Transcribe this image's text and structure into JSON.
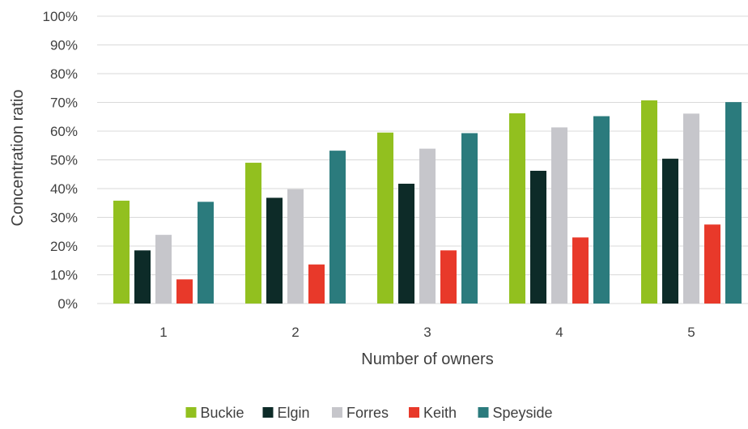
{
  "chart_data": {
    "type": "bar",
    "title": "",
    "xlabel": "Number of owners",
    "ylabel": "Concentration ratio",
    "categories": [
      "1",
      "2",
      "3",
      "4",
      "5"
    ],
    "ylim": [
      0,
      100
    ],
    "yticks": [
      "0%",
      "10%",
      "20%",
      "30%",
      "40%",
      "50%",
      "60%",
      "70%",
      "80%",
      "90%",
      "100%"
    ],
    "grid": true,
    "legend_position": "bottom",
    "series": [
      {
        "name": "Buckie",
        "color": "#92c01f",
        "values": [
          35.8,
          49.0,
          59.5,
          66.2,
          70.7
        ]
      },
      {
        "name": "Elgin",
        "color": "#0d2b28",
        "values": [
          18.5,
          36.8,
          41.7,
          46.2,
          50.4
        ]
      },
      {
        "name": "Forres",
        "color": "#c6c6cb",
        "values": [
          23.9,
          39.8,
          53.9,
          61.3,
          66.1
        ]
      },
      {
        "name": "Keith",
        "color": "#e8392a",
        "values": [
          8.4,
          13.6,
          18.5,
          23.0,
          27.5
        ]
      },
      {
        "name": "Speyside",
        "color": "#2b7b7d",
        "values": [
          35.4,
          53.2,
          59.3,
          65.2,
          70.1
        ]
      }
    ]
  }
}
